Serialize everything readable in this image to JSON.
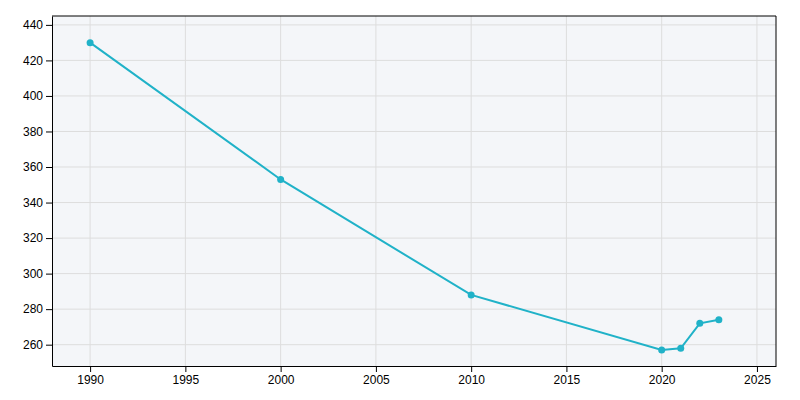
{
  "chart_data": {
    "type": "line",
    "x": [
      1990,
      2000,
      2010,
      2020,
      2021,
      2022,
      2023
    ],
    "values": [
      430,
      353,
      288,
      257,
      258,
      272,
      274
    ],
    "color": "#20b2c8",
    "marker": "circle",
    "xlim": [
      1988,
      2026
    ],
    "ylim": [
      248,
      445
    ],
    "xticks": [
      1990,
      1995,
      2000,
      2005,
      2010,
      2015,
      2020,
      2025
    ],
    "yticks": [
      260,
      280,
      300,
      320,
      340,
      360,
      380,
      400,
      420,
      440
    ],
    "grid": true
  }
}
